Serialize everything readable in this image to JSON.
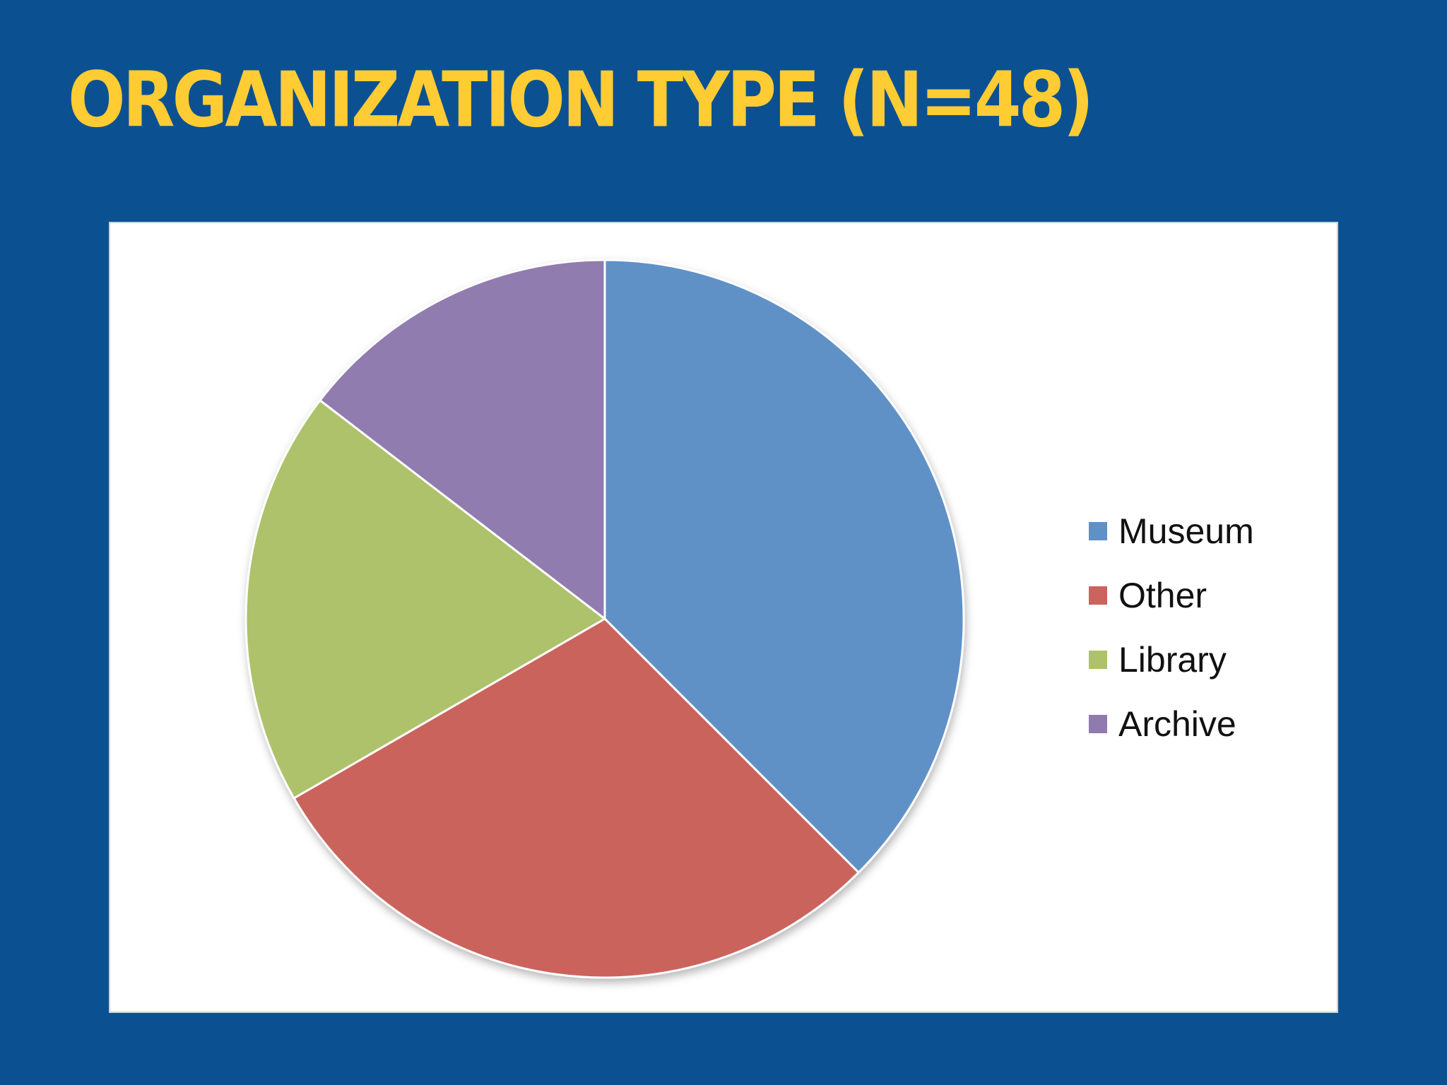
{
  "slide": {
    "title": "ORGANIZATION TYPE (N=48)",
    "title_color": "#ffcc33",
    "background_color": "#0b5192"
  },
  "chart_data": {
    "type": "pie",
    "title": "",
    "categories": [
      "Museum",
      "Other",
      "Library",
      "Archive"
    ],
    "values": [
      18,
      14,
      9,
      7
    ],
    "colors": [
      "#5e91c7",
      "#cb645d",
      "#adc26b",
      "#907bae"
    ],
    "start_angle": "12 o'clock",
    "direction": "clockwise",
    "legend_position": "right"
  }
}
